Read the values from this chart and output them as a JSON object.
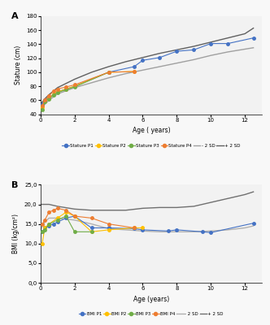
{
  "panel_A": {
    "title": "A",
    "xlabel": "Age ( years)",
    "ylabel": "Stature (cm)",
    "ylim": [
      40,
      180
    ],
    "xlim": [
      0,
      13
    ],
    "yticks": [
      40,
      60,
      80,
      100,
      120,
      140,
      160,
      180
    ],
    "xticks": [
      0,
      2,
      4,
      6,
      8,
      10,
      12
    ],
    "bg_color": "#F2F2F2",
    "P1": {
      "age": [
        0.1,
        0.25,
        0.5,
        0.75,
        1.0,
        1.5,
        2.0,
        4.0,
        5.5,
        6.0,
        7.0,
        8.0,
        9.0,
        10.0,
        11.0,
        12.5
      ],
      "stature": [
        55,
        60,
        64,
        68,
        72,
        76,
        80,
        100,
        108,
        117,
        121,
        130,
        132,
        141,
        141,
        149
      ],
      "color": "#4472C4",
      "marker": "o"
    },
    "P2": {
      "age": [
        0.1,
        0.25,
        0.5,
        0.75,
        1.0,
        1.5,
        2.0,
        4.0,
        5.5
      ],
      "stature": [
        50,
        58,
        63,
        68,
        72,
        76,
        80,
        100,
        101
      ],
      "color": "#FFC000",
      "marker": "o"
    },
    "P3": {
      "age": [
        0.1,
        0.25,
        0.5,
        0.75,
        1.0,
        1.5,
        2.0,
        4.0
      ],
      "stature": [
        47,
        58,
        62,
        67,
        71,
        75,
        79,
        100
      ],
      "color": "#70AD47",
      "marker": "o"
    },
    "P4": {
      "age": [
        0.1,
        0.25,
        0.5,
        0.75,
        1.0,
        1.5,
        2.0,
        4.0,
        5.5
      ],
      "stature": [
        52,
        61,
        66,
        73,
        76,
        79,
        82,
        100,
        101
      ],
      "color": "#ED7D31",
      "marker": "o"
    },
    "minus2SD": {
      "age": [
        0,
        0.25,
        0.5,
        1.0,
        2.0,
        3.0,
        4.0,
        5.0,
        6.0,
        7.0,
        8.0,
        9.0,
        10.0,
        11.0,
        12.0,
        12.5
      ],
      "values": [
        46,
        54,
        60,
        69,
        78,
        85,
        92,
        98,
        103,
        108,
        113,
        118,
        124,
        129,
        133,
        135
      ],
      "color": "#A0A0A0"
    },
    "plus2SD": {
      "age": [
        0,
        0.25,
        0.5,
        1.0,
        2.0,
        3.0,
        4.0,
        5.0,
        6.0,
        7.0,
        8.0,
        9.0,
        10.0,
        11.0,
        12.0,
        12.5
      ],
      "values": [
        54,
        62,
        68,
        78,
        90,
        100,
        108,
        115,
        121,
        127,
        132,
        137,
        143,
        149,
        155,
        163
      ],
      "color": "#606060"
    }
  },
  "panel_B": {
    "title": "B",
    "xlabel": "Age (years)",
    "ylabel": "BMI (kg/cm²)",
    "ylim": [
      0,
      25
    ],
    "xlim": [
      0,
      13
    ],
    "yticks": [
      0.0,
      5.0,
      10.0,
      15.0,
      20.0,
      25.0
    ],
    "ytick_labels": [
      "0,0",
      "5,0",
      "10,0",
      "15,0",
      "20,0",
      "25,0"
    ],
    "xticks": [
      0,
      2,
      4,
      6,
      8,
      10,
      12
    ],
    "bg_color": "#F2F2F2",
    "P1": {
      "age": [
        0.1,
        0.25,
        0.5,
        0.75,
        1.0,
        1.5,
        2.0,
        3.0,
        4.0,
        5.5,
        6.0,
        7.5,
        8.0,
        9.5,
        10.0,
        12.5
      ],
      "bmi": [
        13,
        14,
        14.5,
        15,
        15.5,
        16.5,
        17,
        14,
        14,
        13.8,
        13.5,
        13.2,
        13.5,
        13.0,
        12.8,
        15.2
      ],
      "color": "#4472C4",
      "marker": "o"
    },
    "P2": {
      "age": [
        0.1,
        0.25,
        0.5,
        1.0,
        1.5,
        2.0,
        3.0,
        4.0,
        5.5,
        6.0
      ],
      "bmi": [
        10,
        14,
        15,
        16.5,
        18,
        17,
        13,
        13.5,
        14,
        14
      ],
      "color": "#FFC000",
      "marker": "o"
    },
    "P3": {
      "age": [
        0.1,
        0.25,
        0.5,
        1.0,
        1.5,
        2.0,
        3.0
      ],
      "bmi": [
        13,
        13.5,
        15,
        16,
        17,
        13,
        13
      ],
      "color": "#70AD47",
      "marker": "o"
    },
    "P4": {
      "age": [
        0.1,
        0.25,
        0.5,
        0.75,
        1.0,
        1.5,
        2.0,
        3.0,
        4.0,
        5.5
      ],
      "bmi": [
        15,
        16,
        18,
        18.5,
        19,
        18.5,
        17,
        16.5,
        15,
        14
      ],
      "color": "#ED7D31",
      "marker": "o"
    },
    "minus2SD": {
      "age": [
        0,
        0.25,
        0.5,
        1.0,
        2.0,
        3.0,
        4.0,
        5.0,
        6.0,
        7.0,
        8.0,
        9.0,
        10.0,
        11.0,
        12.0,
        12.5
      ],
      "values": [
        13.5,
        15.5,
        16.5,
        16.5,
        16,
        15,
        13.8,
        13.5,
        13.2,
        13.0,
        13.0,
        13.0,
        13.2,
        13.5,
        14.0,
        14.5
      ],
      "color": "#B0B0B0"
    },
    "plus2SD": {
      "age": [
        0,
        0.25,
        0.5,
        1.0,
        2.0,
        3.0,
        4.0,
        5.0,
        6.0,
        7.0,
        8.0,
        9.0,
        10.0,
        11.0,
        12.0,
        12.5
      ],
      "values": [
        20,
        20,
        20,
        19.5,
        18.8,
        18.5,
        18.5,
        18.5,
        19,
        19.2,
        19.2,
        19.5,
        20.5,
        21.5,
        22.5,
        23.2
      ],
      "color": "#707070"
    }
  },
  "fig_bg": "#F8F8F8"
}
